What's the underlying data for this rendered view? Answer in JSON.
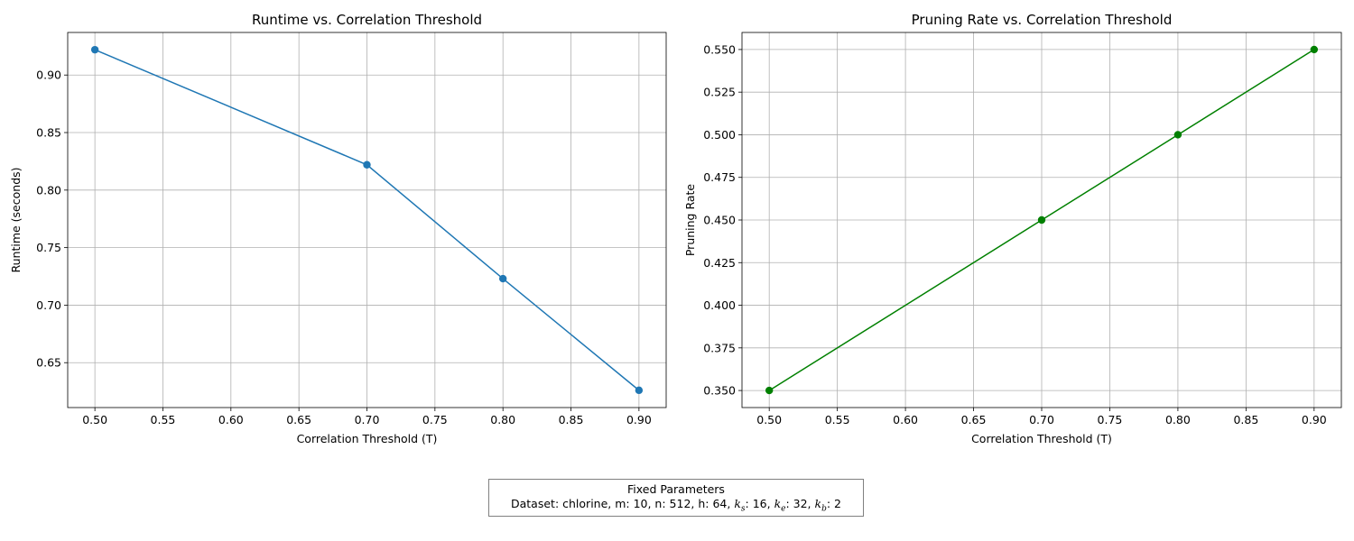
{
  "chart_data": [
    {
      "type": "line",
      "title": "Runtime vs. Correlation Threshold",
      "xlabel": "Correlation Threshold (T)",
      "ylabel": "Runtime (seconds)",
      "xlim": [
        0.48,
        0.92
      ],
      "ylim": [
        0.611,
        0.937
      ],
      "xticks": [
        "0.50",
        "0.55",
        "0.60",
        "0.65",
        "0.70",
        "0.75",
        "0.80",
        "0.85",
        "0.90"
      ],
      "yticks": [
        "0.65",
        "0.70",
        "0.75",
        "0.80",
        "0.85",
        "0.90"
      ],
      "grid": true,
      "marker": "circle",
      "color": "#1f77b4",
      "x": [
        0.5,
        0.7,
        0.8,
        0.9
      ],
      "y": [
        0.922,
        0.822,
        0.723,
        0.626
      ]
    },
    {
      "type": "line",
      "title": "Pruning Rate vs. Correlation Threshold",
      "xlabel": "Correlation Threshold (T)",
      "ylabel": "Pruning Rate",
      "xlim": [
        0.48,
        0.92
      ],
      "ylim": [
        0.34,
        0.56
      ],
      "xticks": [
        "0.50",
        "0.55",
        "0.60",
        "0.65",
        "0.70",
        "0.75",
        "0.80",
        "0.85",
        "0.90"
      ],
      "yticks": [
        "0.350",
        "0.375",
        "0.400",
        "0.425",
        "0.450",
        "0.475",
        "0.500",
        "0.525",
        "0.550"
      ],
      "grid": true,
      "marker": "circle",
      "color": "#008000",
      "x": [
        0.5,
        0.7,
        0.8,
        0.9
      ],
      "y": [
        0.35,
        0.45,
        0.5,
        0.55
      ]
    }
  ],
  "params_box": {
    "title": "Fixed Parameters",
    "dataset_label": "Dataset: chlorine, m: 10, n: 512, h: 64, ",
    "ks_sym": "k",
    "ks_sub": "s",
    "ks_val": ": 16, ",
    "ke_sym": "k",
    "ke_sub": "e",
    "ke_val": ": 32, ",
    "kb_sym": "k",
    "kb_sub": "b",
    "kb_val": ": 2"
  }
}
